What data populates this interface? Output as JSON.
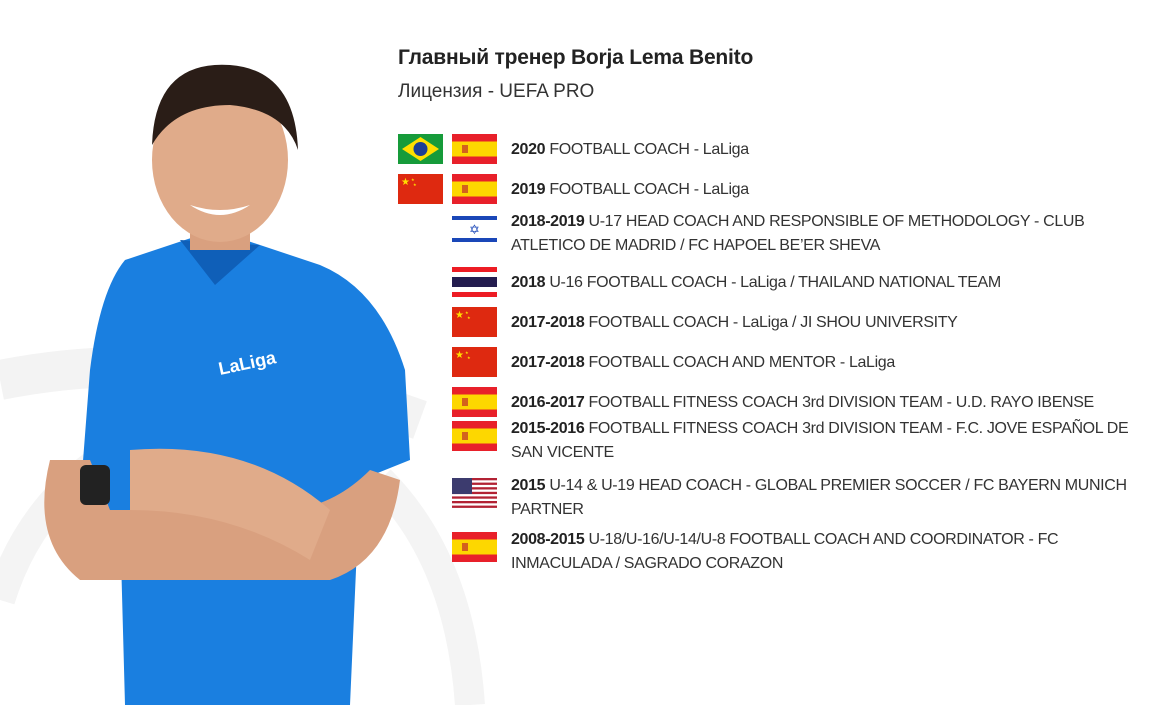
{
  "header": {
    "title": "Главный тренер Borja Lema Benito",
    "license": "Лицензия - UEFA PRO"
  },
  "photo": {
    "shirt_logo": "LaLiga"
  },
  "career": [
    {
      "years": "2020",
      "desc": "FOOTBALL COACH - LaLiga",
      "flags": [
        "brazil-flag",
        "spain-flag"
      ]
    },
    {
      "years": "2019",
      "desc": "FOOTBALL COACH - LaLiga",
      "flags": [
        "china-flag",
        "spain-flag"
      ]
    },
    {
      "years": "2018-2019",
      "desc": "U-17 HEAD COACH AND RESPONSIBLE OF METHODOLOGY - CLUB ATLETICO DE MADRID / FC HAPOEL BE’ER SHEVA",
      "flags": [
        "israel-flag"
      ]
    },
    {
      "years": "2018",
      "desc": "U-16 FOOTBALL COACH - LaLiga / THAILAND NATIONAL TEAM",
      "flags": [
        "thailand-flag"
      ]
    },
    {
      "years": "2017-2018",
      "desc": "FOOTBALL COACH - LaLiga / JI SHOU UNIVERSITY",
      "flags": [
        "china-flag"
      ]
    },
    {
      "years": "2017-2018",
      "desc": "FOOTBALL COACH AND MENTOR - LaLiga",
      "flags": [
        "china-flag"
      ]
    },
    {
      "years": "2016-2017",
      "desc": "FOOTBALL FITNESS COACH 3rd DIVISION TEAM - U.D. RAYO IBENSE",
      "flags": [
        "spain-flag"
      ]
    },
    {
      "years": "2015-2016",
      "desc": "FOOTBALL FITNESS COACH 3rd DIVISION TEAM - F.C. JOVE ESPAÑOL DE SAN VICENTE",
      "flags": [
        "spain-flag"
      ]
    },
    {
      "years": "2015",
      "desc": "U-14 & U-19 HEAD COACH - GLOBAL PREMIER SOCCER / FC BAYERN MUNICH PARTNER",
      "flags": [
        "usa-flag"
      ]
    },
    {
      "years": "2008-2015",
      "desc": "U-18/U-16/U-14/U-8 FOOTBALL COACH AND COORDINATOR - FC INMACULADA / SAGRADO CORAZON",
      "flags": [
        "spain-flag"
      ]
    }
  ],
  "colors": {
    "shirt": "#1a7fe0",
    "spain_red": "#e8202a",
    "spain_yellow": "#fdd700"
  }
}
